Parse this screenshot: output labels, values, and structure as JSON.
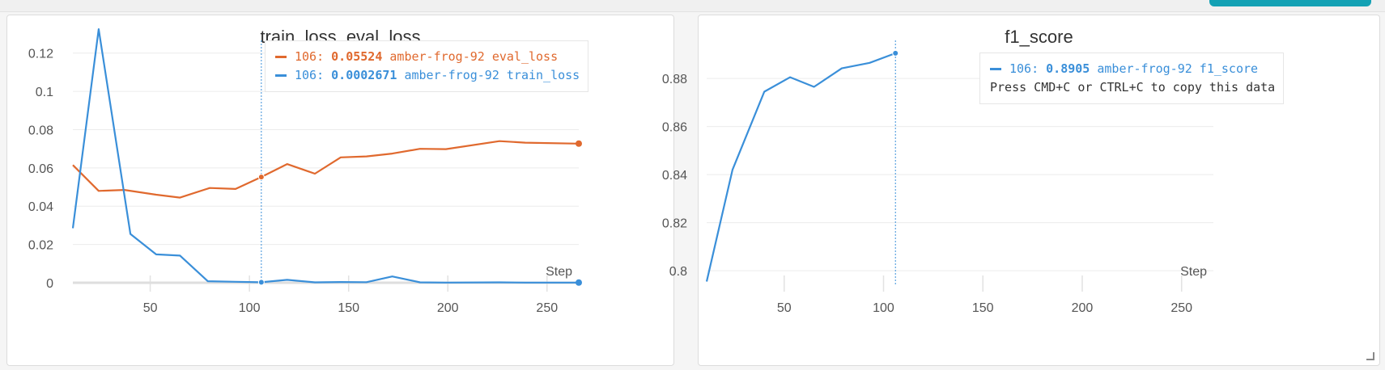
{
  "panels": [
    {
      "title": "train_loss, eval_loss",
      "step_label": "Step",
      "tooltip": {
        "rows": [
          {
            "step": "106:",
            "value": "0.05524",
            "name": "amber-frog-92 eval_loss",
            "color": "#e0692e"
          },
          {
            "step": "106:",
            "value": "0.0002671",
            "name": "amber-frog-92 train_loss",
            "color": "#3a8fd9"
          }
        ]
      }
    },
    {
      "title": "f1_score",
      "step_label": "Step",
      "tooltip": {
        "rows": [
          {
            "step": "106:",
            "value": "0.8905",
            "name": "amber-frog-92 f1_score",
            "color": "#3a8fd9"
          }
        ],
        "copy_hint": "Press CMD+C or CTRL+C to copy this data"
      }
    }
  ],
  "chart_data": [
    {
      "type": "line",
      "title": "train_loss, eval_loss",
      "xlabel": "Step",
      "ylabel": "",
      "xlim": [
        11,
        266
      ],
      "ylim": [
        0,
        0.13
      ],
      "x_ticks": [
        50,
        100,
        150,
        200,
        250
      ],
      "y_ticks": [
        0,
        0.02,
        0.04,
        0.06,
        0.08,
        0.1,
        0.12
      ],
      "y_tick_labels": [
        "0",
        "0.02",
        "0.04",
        "0.06",
        "0.08",
        "0.1",
        "0.12"
      ],
      "hover_step": 106,
      "series": [
        {
          "name": "amber-frog-92 eval_loss",
          "color": "#e0692e",
          "x": [
            11,
            24,
            37,
            53,
            65,
            80,
            93,
            106,
            119,
            133,
            146,
            159,
            172,
            186,
            199,
            226,
            239,
            266
          ],
          "y": [
            0.0615,
            0.048,
            0.0485,
            0.046,
            0.0445,
            0.0495,
            0.049,
            0.05524,
            0.062,
            0.057,
            0.0655,
            0.066,
            0.0675,
            0.07,
            0.0698,
            0.074,
            0.0732,
            0.0727
          ]
        },
        {
          "name": "amber-frog-92 train_loss",
          "color": "#3a8fd9",
          "x": [
            11,
            24,
            40,
            53,
            65,
            79,
            93,
            106,
            119,
            133,
            146,
            159,
            172,
            186,
            199,
            226,
            239,
            266
          ],
          "y": [
            0.0285,
            0.1325,
            0.0255,
            0.0148,
            0.0142,
            0.0008,
            0.0005,
            0.0002671,
            0.0015,
            0.0002,
            0.0004,
            0.0003,
            0.0033,
            0.0002,
            0.0001,
            0.0002,
            0.0001,
            0.0001
          ]
        }
      ]
    },
    {
      "type": "line",
      "title": "f1_score",
      "xlabel": "Step",
      "ylabel": "",
      "xlim": [
        11,
        266
      ],
      "ylim": [
        0.795,
        0.8945
      ],
      "x_ticks": [
        50,
        100,
        150,
        200,
        250
      ],
      "y_ticks": [
        0.8,
        0.82,
        0.84,
        0.86,
        0.88
      ],
      "y_tick_labels": [
        "0.8",
        "0.82",
        "0.84",
        "0.86",
        "0.88"
      ],
      "hover_step": 106,
      "series": [
        {
          "name": "amber-frog-92 f1_score",
          "color": "#3a8fd9",
          "x": [
            11,
            24,
            40,
            53,
            65,
            79,
            93,
            106
          ],
          "y": [
            0.7955,
            0.842,
            0.8745,
            0.8805,
            0.8765,
            0.8842,
            0.8865,
            0.8905
          ]
        }
      ]
    }
  ]
}
